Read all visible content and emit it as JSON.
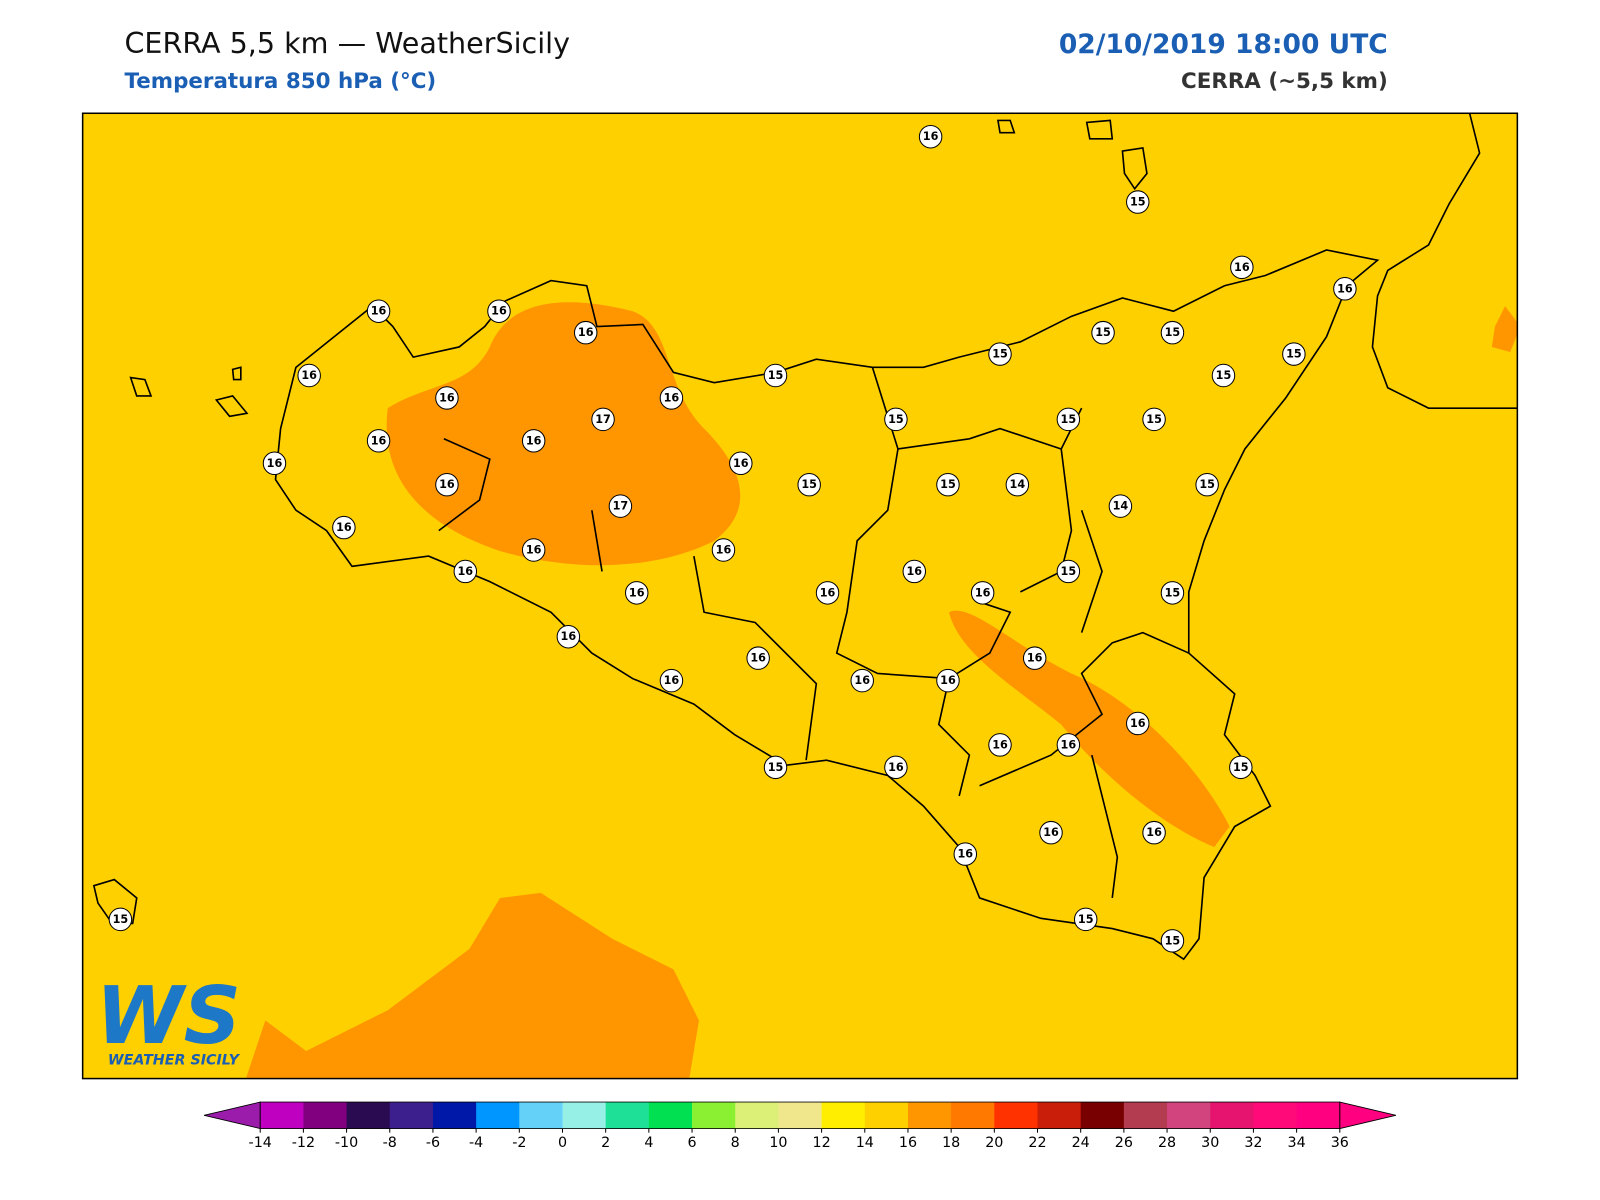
{
  "header": {
    "title": "CERRA 5,5 km — WeatherSicily",
    "subtitle": "Temperatura 850 hPa (°C)",
    "datetime": "02/10/2019 18:00 UTC",
    "source": "CERRA (~5,5 km)"
  },
  "stations": {
    "values": [
      16,
      15,
      16,
      16,
      16,
      16,
      16,
      15,
      15,
      15,
      15,
      16,
      15,
      15,
      16,
      17,
      16,
      15,
      15,
      15,
      16,
      16,
      16,
      16,
      16,
      15,
      15,
      14,
      15,
      17,
      14,
      16,
      16,
      16,
      16,
      16,
      15,
      16,
      16,
      16,
      15,
      16,
      16,
      16,
      16,
      16,
      16,
      16,
      16,
      16,
      15,
      16,
      15,
      16,
      16,
      16,
      15,
      15,
      15
    ]
  },
  "logo": {
    "initials": "WS",
    "text": "WEATHER SICILY"
  },
  "colorbar": {
    "ticks": [
      -14,
      -12,
      -10,
      -8,
      -6,
      -4,
      -2,
      0,
      2,
      4,
      6,
      8,
      10,
      12,
      14,
      16,
      18,
      20,
      22,
      24,
      26,
      28,
      30,
      32,
      34,
      36
    ],
    "colors": [
      "#c000c0",
      "#800080",
      "#2a0a50",
      "#3c1e8c",
      "#0018a8",
      "#0096ff",
      "#64d2f8",
      "#96f0e6",
      "#1ee096",
      "#00e050",
      "#8cf032",
      "#dcf078",
      "#f0e68c",
      "#ffee00",
      "#ffd000",
      "#ff9600",
      "#ff7800",
      "#ff3200",
      "#c81e0a",
      "#780000",
      "#b43c50",
      "#d2447e",
      "#e6146e",
      "#ff0a78",
      "#ff0080"
    ],
    "under_color": "#9b1bab",
    "over_color": "#ff0080"
  }
}
